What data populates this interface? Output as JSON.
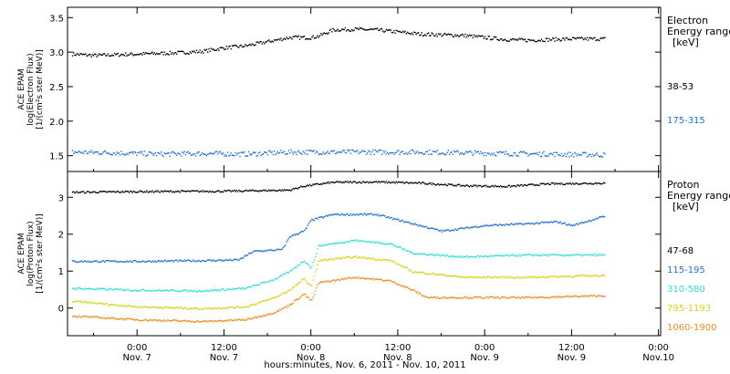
{
  "chart_data": [
    {
      "type": "scatter",
      "ylabel_lines": [
        "ACE EPAM",
        "log(Electron Flux)",
        "[1/(cm²s ster MeV)]"
      ],
      "legend_title_lines": [
        "Electron",
        "Energy ranges",
        "[keV]"
      ],
      "ylim": [
        1.35,
        3.57
      ],
      "yticks": [
        1.5,
        2.0,
        2.5,
        3.0,
        3.5
      ],
      "ytick_labels": [
        "1.5",
        "2.0",
        "2.5",
        "3.0",
        "3.5"
      ],
      "series": [
        {
          "name": "38-53",
          "color": "#000000",
          "points": [
            [
              -9,
              2.98
            ],
            [
              -6,
              2.96
            ],
            [
              -3,
              2.97
            ],
            [
              0,
              2.98
            ],
            [
              3,
              2.99
            ],
            [
              6,
              3.0
            ],
            [
              9,
              3.02
            ],
            [
              12,
              3.07
            ],
            [
              15,
              3.1
            ],
            [
              18,
              3.16
            ],
            [
              21,
              3.22
            ],
            [
              24,
              3.22
            ],
            [
              25,
              3.24
            ],
            [
              27,
              3.33
            ],
            [
              30,
              3.34
            ],
            [
              33,
              3.33
            ],
            [
              36,
              3.3
            ],
            [
              39,
              3.27
            ],
            [
              42,
              3.26
            ],
            [
              45,
              3.25
            ],
            [
              48,
              3.22
            ],
            [
              51,
              3.19
            ],
            [
              54,
              3.18
            ],
            [
              57,
              3.19
            ],
            [
              60,
              3.2
            ],
            [
              63,
              3.2
            ],
            [
              64.5,
              3.2
            ]
          ]
        },
        {
          "name": "175-315",
          "color": "#1f6fd6",
          "points": [
            [
              -9,
              1.56
            ],
            [
              -3,
              1.55
            ],
            [
              3,
              1.53
            ],
            [
              9,
              1.54
            ],
            [
              15,
              1.53
            ],
            [
              21,
              1.56
            ],
            [
              27,
              1.56
            ],
            [
              33,
              1.56
            ],
            [
              39,
              1.56
            ],
            [
              45,
              1.55
            ],
            [
              51,
              1.54
            ],
            [
              57,
              1.53
            ],
            [
              64.5,
              1.52
            ]
          ]
        }
      ]
    },
    {
      "type": "scatter",
      "ylabel_lines": [
        "ACE EPAM",
        "log(Proton Flux)",
        "[1/(cm²s ster MeV)]"
      ],
      "legend_title_lines": [
        "Proton",
        "Energy ranges",
        "[keV]"
      ],
      "ylim": [
        -0.6,
        3.55
      ],
      "yticks": [
        0,
        1,
        2,
        3
      ],
      "ytick_labels": [
        "0",
        "1",
        "2",
        "3"
      ],
      "series": [
        {
          "name": "47-68",
          "color": "#000000",
          "points": [
            [
              -9,
              3.15
            ],
            [
              0,
              3.17
            ],
            [
              12,
              3.18
            ],
            [
              21,
              3.21
            ],
            [
              23,
              3.32
            ],
            [
              27,
              3.42
            ],
            [
              33,
              3.43
            ],
            [
              39,
              3.4
            ],
            [
              45,
              3.33
            ],
            [
              51,
              3.31
            ],
            [
              57,
              3.38
            ],
            [
              64.5,
              3.4
            ]
          ]
        },
        {
          "name": "115-195",
          "color": "#1f6fd6",
          "points": [
            [
              -9,
              1.28
            ],
            [
              0,
              1.28
            ],
            [
              9,
              1.3
            ],
            [
              14,
              1.32
            ],
            [
              16,
              1.55
            ],
            [
              20,
              1.6
            ],
            [
              21,
              1.95
            ],
            [
              23,
              2.1
            ],
            [
              24,
              2.4
            ],
            [
              27,
              2.55
            ],
            [
              33,
              2.55
            ],
            [
              38,
              2.3
            ],
            [
              42,
              2.1
            ],
            [
              48,
              2.25
            ],
            [
              54,
              2.3
            ],
            [
              58,
              2.35
            ],
            [
              60,
              2.25
            ],
            [
              64.5,
              2.5
            ]
          ]
        },
        {
          "name": "310-580",
          "color": "#2ee0d4",
          "points": [
            [
              -9,
              0.55
            ],
            [
              0,
              0.5
            ],
            [
              9,
              0.48
            ],
            [
              15,
              0.55
            ],
            [
              19,
              0.8
            ],
            [
              21,
              1.0
            ],
            [
              23,
              1.3
            ],
            [
              24,
              1.1
            ],
            [
              25,
              1.7
            ],
            [
              30,
              1.85
            ],
            [
              35,
              1.75
            ],
            [
              38,
              1.5
            ],
            [
              45,
              1.4
            ],
            [
              54,
              1.45
            ],
            [
              64.5,
              1.45
            ]
          ]
        },
        {
          "name": "795-1193",
          "color": "#d4d41a",
          "points": [
            [
              -9,
              0.2
            ],
            [
              0,
              0.05
            ],
            [
              9,
              0.0
            ],
            [
              15,
              0.05
            ],
            [
              19,
              0.3
            ],
            [
              21,
              0.5
            ],
            [
              23,
              0.8
            ],
            [
              24,
              0.6
            ],
            [
              25,
              1.3
            ],
            [
              30,
              1.4
            ],
            [
              35,
              1.3
            ],
            [
              38,
              1.0
            ],
            [
              45,
              0.85
            ],
            [
              54,
              0.85
            ],
            [
              64.5,
              0.9
            ]
          ]
        },
        {
          "name": "1060-1900",
          "color": "#ee8c1a",
          "points": [
            [
              -9,
              -0.2
            ],
            [
              0,
              -0.3
            ],
            [
              9,
              -0.35
            ],
            [
              15,
              -0.3
            ],
            [
              19,
              -0.1
            ],
            [
              21,
              0.1
            ],
            [
              23,
              0.4
            ],
            [
              24,
              0.2
            ],
            [
              25,
              0.7
            ],
            [
              30,
              0.85
            ],
            [
              35,
              0.75
            ],
            [
              38,
              0.5
            ],
            [
              40,
              0.3
            ],
            [
              48,
              0.3
            ],
            [
              54,
              0.3
            ],
            [
              64.5,
              0.35
            ]
          ]
        }
      ]
    }
  ],
  "time_axis": {
    "xlim": [
      -9.6,
      72.3
    ],
    "tick_hours": [
      0,
      12,
      24,
      36,
      48,
      60,
      72
    ],
    "tick_times": [
      "0:00",
      "12:00",
      "0:00",
      "12:00",
      "0:00",
      "12:00",
      "0:00"
    ],
    "tick_dates": [
      "Nov. 7",
      "Nov. 7",
      "Nov. 8",
      "Nov. 8",
      "Nov. 9",
      "Nov. 9",
      "Nov.10"
    ],
    "xlabel": "hours:minutes, Nov.  6, 2011 - Nov. 10, 2011"
  }
}
